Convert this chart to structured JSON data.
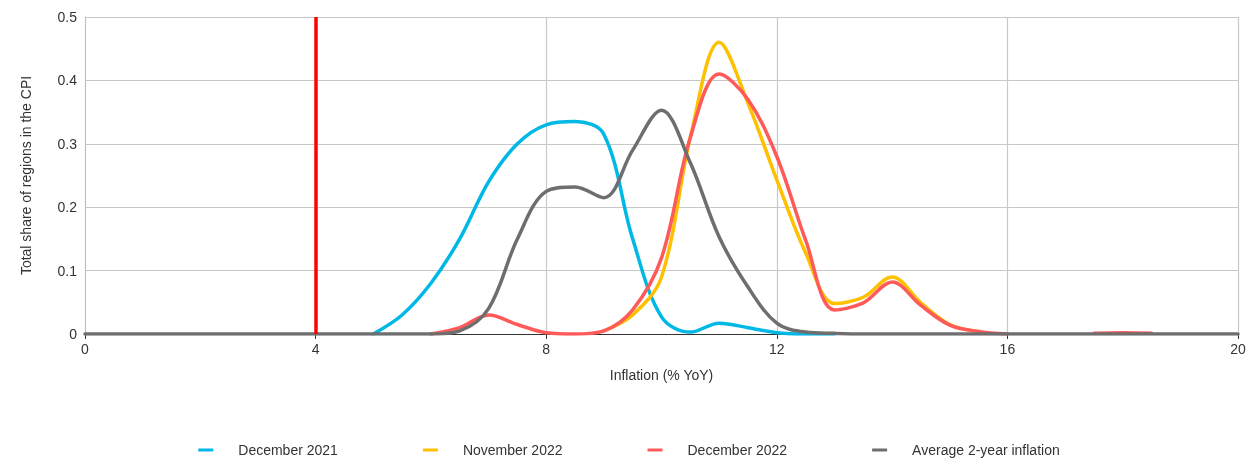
{
  "chart_data": {
    "type": "line",
    "xlabel": "Inflation (% YoY)",
    "ylabel": "Total share of regions in the CPI",
    "x": [
      0,
      0.5,
      1,
      1.5,
      2,
      2.5,
      3,
      3.5,
      4,
      4.5,
      5,
      5.5,
      6,
      6.5,
      7,
      7.5,
      8,
      8.5,
      9,
      9.5,
      10,
      10.5,
      11,
      11.5,
      12,
      12.5,
      13,
      13.5,
      14,
      14.5,
      15,
      15.5,
      16,
      16.5,
      17,
      17.5,
      18,
      18.5,
      19,
      19.5,
      20
    ],
    "series": [
      {
        "name": "December 2021",
        "color": "#00b8e6",
        "values": [
          null,
          null,
          null,
          null,
          null,
          null,
          null,
          null,
          null,
          null,
          0,
          0.03,
          0.08,
          0.15,
          0.24,
          0.3,
          0.33,
          0.335,
          0.315,
          0.15,
          0.027,
          0.003,
          0.017,
          0.01,
          0.002,
          0,
          0,
          null,
          null,
          null,
          null,
          null,
          null,
          null,
          null,
          null,
          null,
          null,
          null,
          null,
          null
        ]
      },
      {
        "name": "November 2022",
        "color": "#ffc000",
        "values": [
          null,
          null,
          null,
          null,
          null,
          null,
          null,
          null,
          null,
          null,
          null,
          null,
          null,
          null,
          null,
          null,
          null,
          null,
          0.005,
          0.03,
          0.09,
          0.31,
          0.46,
          0.364,
          0.243,
          0.128,
          0.048,
          0.058,
          0.09,
          0.049,
          0.015,
          0.004,
          null,
          null,
          null,
          null,
          null,
          null,
          null,
          null,
          null
        ]
      },
      {
        "name": "December 2022",
        "color": "#ff5a5a",
        "values": [
          null,
          null,
          null,
          null,
          null,
          null,
          null,
          null,
          null,
          null,
          null,
          null,
          0,
          0.01,
          0.03,
          0.015,
          0.002,
          0,
          0.005,
          0.038,
          0.12,
          0.31,
          0.41,
          0.37,
          0.28,
          0.148,
          0.038,
          0.049,
          0.082,
          0.045,
          0.014,
          0.004,
          0,
          null,
          null,
          0.001,
          0.002,
          0.001,
          null,
          null,
          null
        ]
      },
      {
        "name": "Average 2-year inflation",
        "color": "#6e6e6e",
        "values": [
          0,
          0,
          0,
          0,
          0,
          0,
          0,
          0,
          0,
          0,
          0,
          0,
          0,
          0.005,
          0.04,
          0.15,
          0.225,
          0.232,
          0.215,
          0.29,
          0.353,
          0.27,
          0.153,
          0.074,
          0.017,
          0.003,
          0.001,
          0,
          0,
          0,
          0,
          0,
          0,
          0,
          0,
          0,
          0,
          0,
          0,
          0,
          0
        ]
      }
    ],
    "xlim": [
      0,
      20
    ],
    "xticks": [
      0,
      4,
      8,
      12,
      16,
      20
    ],
    "ylim": [
      0,
      0.5
    ],
    "yticks": [
      0,
      0.1,
      0.2,
      0.3,
      0.4,
      0.5
    ],
    "ref_lines": [
      {
        "axis": "x",
        "value": 4,
        "color": "#ff0000"
      }
    ],
    "grid": true,
    "legend": "bottom",
    "marker": "none",
    "line_style": "solid"
  }
}
